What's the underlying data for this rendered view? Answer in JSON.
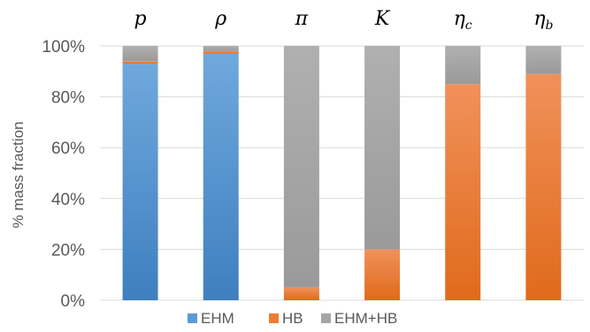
{
  "chart_data": {
    "type": "bar",
    "stacked": true,
    "categories": [
      {
        "base": "p",
        "sub": ""
      },
      {
        "base": "ρ",
        "sub": ""
      },
      {
        "base": "π",
        "sub": ""
      },
      {
        "base": "K",
        "sub": ""
      },
      {
        "base": "η",
        "sub": "c"
      },
      {
        "base": "η",
        "sub": "b"
      }
    ],
    "series": [
      {
        "name": "EHM",
        "values": [
          93,
          97,
          0,
          0,
          0,
          0
        ],
        "color": "#5b9bd5"
      },
      {
        "name": "HB",
        "values": [
          1,
          1,
          5,
          20,
          85,
          89
        ],
        "color": "#ed7d31"
      },
      {
        "name": "EHM+HB",
        "values": [
          6,
          2,
          95,
          80,
          15,
          11
        ],
        "color": "#a5a5a5"
      }
    ],
    "ylabel": "% mass fraction",
    "ylim": [
      0,
      100
    ],
    "yticks": [
      "0%",
      "20%",
      "40%",
      "60%",
      "80%",
      "100%"
    ],
    "yticks_values": [
      0,
      20,
      40,
      60,
      80,
      100
    ],
    "grid": true,
    "category_labels_position": "top",
    "legend_position": "bottom"
  }
}
